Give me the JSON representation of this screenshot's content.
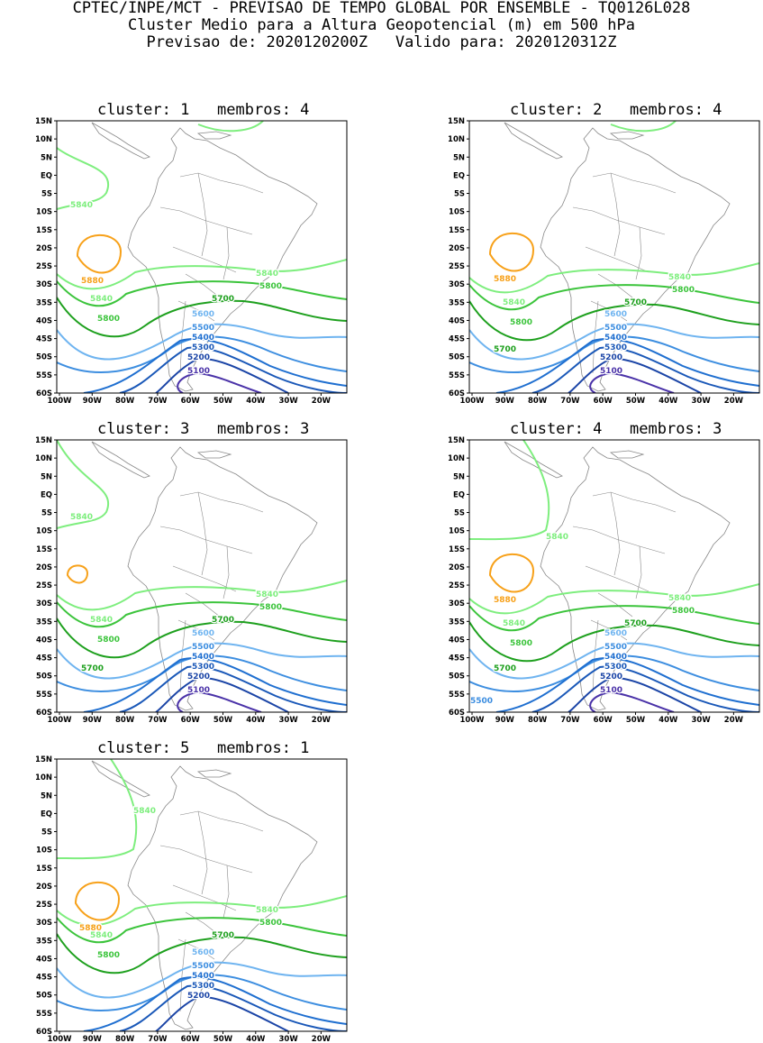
{
  "header": {
    "line1": "CPTEC/INPE/MCT - PREVISAO DE TEMPO GLOBAL POR ENSEMBLE - TQ0126L028",
    "line2": "Cluster Medio para a Altura Geopotencial (m) em 500 hPa",
    "line3": "Previsao de: 2020120200Z   Valido para: 2020120312Z"
  },
  "lat_ticks": [
    "15N",
    "10N",
    "5N",
    "EQ",
    "5S",
    "10S",
    "15S",
    "20S",
    "25S",
    "30S",
    "35S",
    "40S",
    "45S",
    "50S",
    "55S",
    "60S"
  ],
  "lon_ticks": [
    "100W",
    "90W",
    "80W",
    "70W",
    "60W",
    "50W",
    "40W",
    "30W",
    "20W"
  ],
  "panels": [
    {
      "title": "cluster: 1   membros: 4",
      "labels": {
        "c5840a": "5840",
        "c5880": "5880",
        "c5840b": "5840",
        "c5840c": "5840",
        "c5800a": "5800",
        "c5800b": "5800",
        "c5700a": "5700",
        "c5600": "5600",
        "c5500": "5500",
        "c5400": "5400",
        "c5300": "5300",
        "c5200": "5200",
        "c5100": "5100"
      }
    },
    {
      "title": "cluster: 2   membros: 4",
      "labels": {
        "c5880": "5880",
        "c5840b": "5840",
        "c5840c": "5840",
        "c5800a": "5800",
        "c5800b": "5800",
        "c5700a": "5700",
        "c5700b": "5700",
        "c5600": "5600",
        "c5500": "5500",
        "c5400": "5400",
        "c5300": "5300",
        "c5200": "5200",
        "c5100": "5100"
      }
    },
    {
      "title": "cluster: 3   membros: 3",
      "labels": {
        "c5840a": "5840",
        "c5840b": "5840",
        "c5840c": "5840",
        "c5800a": "5800",
        "c5800b": "5800",
        "c5700a": "5700",
        "c5700b": "5700",
        "c5600": "5600",
        "c5500": "5500",
        "c5400": "5400",
        "c5300": "5300",
        "c5200": "5200",
        "c5100": "5100"
      }
    },
    {
      "title": "cluster: 4   membros: 3",
      "labels": {
        "c5840a": "5840",
        "c5880": "5880",
        "c5840b": "5840",
        "c5840c": "5840",
        "c5800a": "5800",
        "c5800b": "5800",
        "c5700a": "5700",
        "c5700b": "5700",
        "c5600": "5600",
        "c5500": "5500",
        "c5500b": "5500",
        "c5400": "5400",
        "c5300": "5300",
        "c5200": "5200",
        "c5100": "5100"
      }
    },
    {
      "title": "cluster: 5   membros: 1",
      "labels": {
        "c5840a": "5840",
        "c5880": "5880",
        "c5840b": "5840",
        "c5840c": "5840",
        "c5800a": "5800",
        "c5800b": "5800",
        "c5700a": "5700",
        "c5600": "5600",
        "c5500": "5500",
        "c5400": "5400",
        "c5300": "5300",
        "c5200": "5200"
      }
    }
  ],
  "colors": {
    "c5880": "#f7a11a",
    "c5840": "#7eee7e",
    "c5800": "#3cc43c",
    "c5700": "#1ea01e",
    "c5600": "#6fb4f0",
    "c5500": "#3d8ee0",
    "c5400": "#1f6fd0",
    "c5300": "#1a58b8",
    "c5200": "#1a44a6",
    "c5100": "#4a32a8",
    "land": "#888888"
  }
}
